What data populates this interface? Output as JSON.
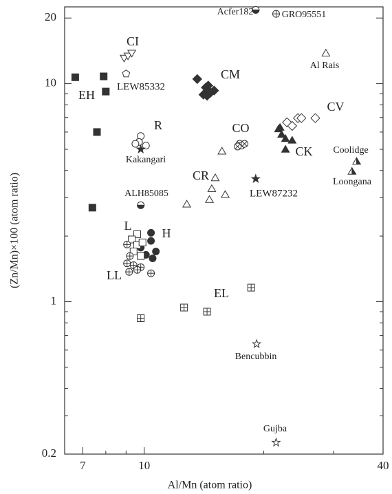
{
  "chart_data": {
    "type": "scatter",
    "x_label": "Al/Mn (atom ratio)",
    "y_label": "(Zn/Mn)×100 (atom ratio)",
    "xlog": true,
    "ylog": true,
    "xlim": [
      6.3,
      40
    ],
    "ylim": [
      0.2,
      22.5
    ],
    "xticks": [
      7,
      10,
      40
    ],
    "yticks": [
      0.2,
      1,
      10,
      20
    ],
    "xminor_ticks": [
      8,
      9,
      20,
      30
    ],
    "yminor_ticks": [
      0.3,
      0.4,
      0.5,
      0.6,
      0.7,
      0.8,
      0.9,
      2,
      3,
      4,
      5,
      6,
      7,
      8,
      9
    ],
    "color": "#333333",
    "series": [
      {
        "name": "EH",
        "marker": "square-filled",
        "x": [
          6.7,
          7.9,
          8.0,
          7.6,
          7.4
        ],
        "values": [
          10.7,
          10.8,
          9.2,
          6.0,
          2.7
        ]
      },
      {
        "name": "CI",
        "marker": "triangle-down-open",
        "x": [
          8.9,
          9.1,
          9.3
        ],
        "values": [
          13.1,
          13.4,
          13.8
        ]
      },
      {
        "name": "LEW85332",
        "marker": "pentagon-open",
        "x": [
          9.0
        ],
        "values": [
          11.1
        ]
      },
      {
        "name": "CM",
        "marker": "diamond-filled",
        "x": [
          13.6,
          14.3,
          14.1,
          14.4,
          15.0,
          14.5,
          14.7
        ],
        "values": [
          10.5,
          9.6,
          8.9,
          8.8,
          9.3,
          9.8,
          9.1
        ]
      },
      {
        "name": "R",
        "marker": "circle-open",
        "x": [
          9.8,
          9.7,
          10.1,
          9.5
        ],
        "values": [
          5.75,
          5.4,
          5.2,
          5.3
        ]
      },
      {
        "name": "Kakangari",
        "marker": "star-filled",
        "x": [
          9.8
        ],
        "values": [
          5.0
        ]
      },
      {
        "name": "ALH85085",
        "marker": "circle-half",
        "x": [
          9.8
        ],
        "values": [
          2.77
        ]
      },
      {
        "name": "CO",
        "marker": "circle-cross",
        "x": [
          17.4,
          17.6,
          17.2,
          17.9
        ],
        "values": [
          5.3,
          5.2,
          5.15,
          5.3
        ]
      },
      {
        "name": "CR",
        "marker": "triangle-open",
        "x": [
          15.7,
          15.1,
          14.8,
          14.6,
          16.0,
          12.8
        ],
        "values": [
          4.9,
          3.7,
          3.3,
          2.94,
          3.1,
          2.8
        ]
      },
      {
        "name": "LEW87232",
        "marker": "star-filled",
        "x": [
          19.1
        ],
        "values": [
          3.66
        ]
      },
      {
        "name": "CV",
        "marker": "diamond-open",
        "x": [
          22.9,
          24.4,
          24.9,
          27.0,
          23.6
        ],
        "values": [
          6.65,
          6.95,
          6.95,
          6.95,
          6.4
        ]
      },
      {
        "name": "CK",
        "marker": "triangle-filled",
        "x": [
          21.8,
          22.2,
          22.7,
          23.6,
          22.7,
          22.0
        ],
        "values": [
          6.2,
          5.85,
          5.6,
          5.5,
          5.0,
          6.3
        ]
      },
      {
        "name": "Al Rais",
        "marker": "triangle-open",
        "x": [
          28.7
        ],
        "values": [
          13.8
        ]
      },
      {
        "name": "Acfer182",
        "marker": "circle-half",
        "x": [
          19.1
        ],
        "values": [
          21.8
        ]
      },
      {
        "name": "GRO95551",
        "marker": "circle-plus",
        "x": [
          21.5
        ],
        "values": [
          20.9
        ]
      },
      {
        "name": "Coolidge",
        "marker": "triangle-half",
        "x": [
          34.3
        ],
        "values": [
          4.4
        ]
      },
      {
        "name": "Loongana",
        "marker": "triangle-half",
        "x": [
          33.4
        ],
        "values": [
          3.96
        ]
      },
      {
        "name": "EL",
        "marker": "square-plus",
        "x": [
          18.6,
          14.4,
          12.6,
          9.8
        ],
        "values": [
          1.16,
          0.9,
          0.94,
          0.84
        ]
      },
      {
        "name": "Bencubbin",
        "marker": "star-open",
        "x": [
          19.2
        ],
        "values": [
          0.64
        ]
      },
      {
        "name": "Gujba",
        "marker": "star-open",
        "x": [
          21.5
        ],
        "values": [
          0.226
        ]
      },
      {
        "name": "H",
        "marker": "circle-filled",
        "x": [
          10.4,
          10.4,
          10.7,
          10.1,
          10.5,
          9.8
        ],
        "values": [
          2.07,
          1.9,
          1.7,
          1.64,
          1.58,
          1.77
        ]
      },
      {
        "name": "L",
        "marker": "square-open",
        "x": [
          9.6,
          9.3,
          9.6,
          9.9,
          9.4,
          9.8
        ],
        "values": [
          2.04,
          1.93,
          1.82,
          1.87,
          1.7,
          1.62
        ]
      },
      {
        "name": "LL",
        "marker": "circle-plus",
        "x": [
          9.05,
          9.2,
          9.05,
          9.4,
          9.8,
          10.4,
          9.16,
          9.6
        ],
        "values": [
          1.83,
          1.62,
          1.5,
          1.47,
          1.44,
          1.35,
          1.37,
          1.4
        ]
      }
    ]
  }
}
